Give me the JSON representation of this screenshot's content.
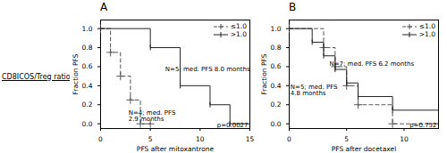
{
  "chart_data": [
    {
      "type": "line",
      "title": "A",
      "xlabel": "PFS after mitoxantrone",
      "ylabel": "Fraction PFS",
      "xlim": [
        0,
        15
      ],
      "ylim": [
        -0.05,
        1.09
      ],
      "xticks": [
        0,
        5,
        10,
        15
      ],
      "yticks": [
        {
          "value": 0,
          "label": "0.0"
        },
        0.2,
        0.4,
        0.6,
        0.8,
        {
          "value": 1,
          "label": "1.0"
        }
      ],
      "legend": "upper right",
      "series": [
        {
          "name": "≤1.0",
          "color": "#555555",
          "line_style": "dashed",
          "marker": "plus",
          "x": [
            0,
            1,
            2,
            3,
            4,
            5
          ],
          "values": [
            1.0,
            0.75,
            0.5,
            0.25,
            0.0,
            0.0
          ]
        },
        {
          "name": ">1.0",
          "color": "#222222",
          "line_style": "solid",
          "marker": "vline",
          "x": [
            0,
            5,
            8,
            11,
            13,
            15
          ],
          "values": [
            1.0,
            0.8,
            0.4,
            0.2,
            0.0,
            0.0
          ]
        }
      ],
      "annotations": [
        {
          "text": "N=5; med. PFS 8.0 months",
          "x": 6.5,
          "y": 0.57
        },
        {
          "text": "N=4; med. PFS\n2.9 months",
          "x": 2.8,
          "y": 0.14
        },
        {
          "text": "p=0.0027"
        }
      ]
    },
    {
      "type": "line",
      "title": "B",
      "xlabel": "PFS after docetaxel",
      "ylabel": "Fraction PFS",
      "xlim": [
        0,
        13
      ],
      "ylim": [
        -0.05,
        1.09
      ],
      "xticks": [
        0,
        5,
        10
      ],
      "yticks": [
        {
          "value": 0,
          "label": "0.0"
        },
        0.2,
        0.4,
        0.6,
        0.8,
        {
          "value": 1,
          "label": "1.0"
        }
      ],
      "legend": "upper right",
      "series": [
        {
          "name": "≤1.0",
          "color": "#555555",
          "line_style": "dashed",
          "marker": "plus",
          "x": [
            0,
            3,
            4,
            5,
            6,
            9,
            13
          ],
          "values": [
            1.0,
            0.8,
            0.6,
            0.4,
            0.2,
            0.0,
            0.0
          ]
        },
        {
          "name": ">1.0",
          "color": "#222222",
          "line_style": "solid",
          "marker": "vline",
          "x": [
            0,
            2,
            3,
            4,
            5,
            6,
            9,
            13
          ],
          "values": [
            1.0,
            0.857,
            0.714,
            0.571,
            0.429,
            0.286,
            0.143,
            0.143
          ]
        }
      ],
      "annotations": [
        {
          "text": "N=7; med. PFS 6.2 months",
          "x": 3.5,
          "y": 0.63
        },
        {
          "text": "N=5; med. PFS\n4.8 months",
          "x": 0.1,
          "y": 0.41
        },
        {
          "text": "p=0.752"
        }
      ]
    }
  ],
  "side_label": "CD8ICOS/Treg ratio"
}
